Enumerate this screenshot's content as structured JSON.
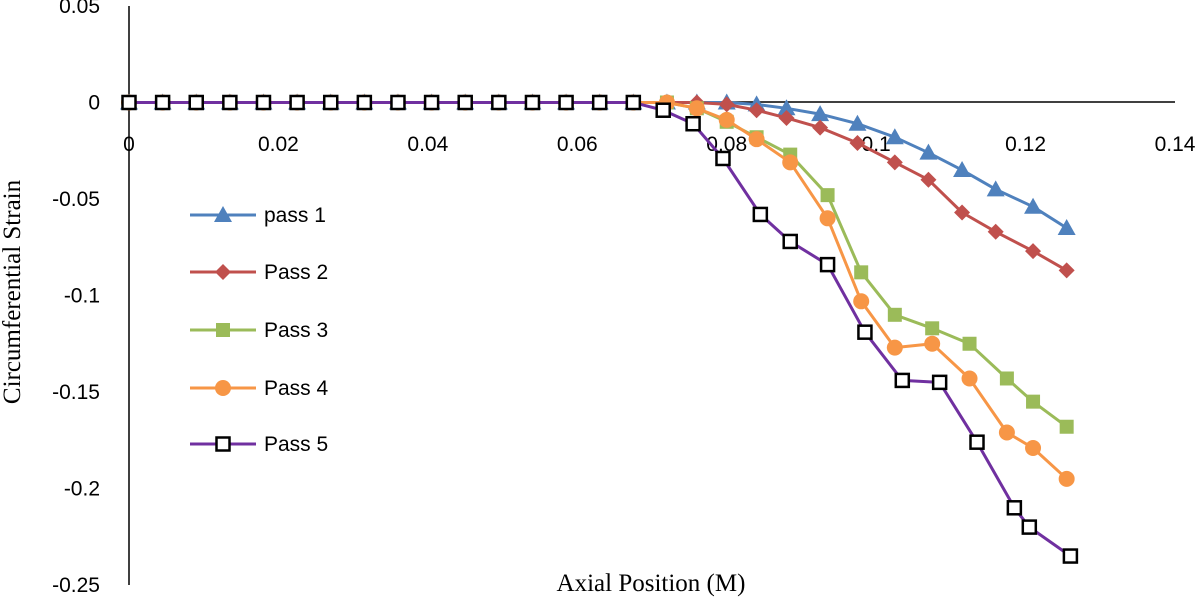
{
  "chart_data": {
    "type": "line",
    "title": "",
    "xlabel": "Axial Position (M)",
    "ylabel": "Circumferential Strain",
    "xlim": [
      0,
      0.14
    ],
    "ylim": [
      -0.25,
      0.05
    ],
    "x_ticks": [
      "0",
      "0.02",
      "0.04",
      "0.06",
      "0.08",
      "0.1",
      "0.12",
      "0.14"
    ],
    "y_ticks": [
      "0.05",
      "0",
      "-0.05",
      "-0.1",
      "-0.15",
      "-0.2",
      "-0.25"
    ],
    "grid": false,
    "legend_position": "left-center",
    "series": [
      {
        "name": "pass 1",
        "color": "#4f81bd",
        "marker": "triangle",
        "x": [
          0,
          0.0045,
          0.009,
          0.0135,
          0.018,
          0.0225,
          0.027,
          0.0315,
          0.036,
          0.0405,
          0.045,
          0.0495,
          0.054,
          0.0585,
          0.063,
          0.0675,
          0.072,
          0.076,
          0.08,
          0.084,
          0.088,
          0.0925,
          0.0975,
          0.1025,
          0.107,
          0.1115,
          0.116,
          0.121,
          0.1255
        ],
        "y": [
          0,
          0,
          0,
          0,
          0,
          0,
          0,
          0,
          0,
          0,
          0,
          0,
          0,
          0,
          0,
          0,
          0,
          0,
          0,
          -0.001,
          -0.003,
          -0.006,
          -0.011,
          -0.018,
          -0.026,
          -0.035,
          -0.045,
          -0.054,
          -0.065
        ]
      },
      {
        "name": "Pass 2",
        "color": "#c0504d",
        "marker": "diamond",
        "x": [
          0,
          0.0045,
          0.009,
          0.0135,
          0.018,
          0.0225,
          0.027,
          0.0315,
          0.036,
          0.0405,
          0.045,
          0.0495,
          0.054,
          0.0585,
          0.063,
          0.0675,
          0.072,
          0.076,
          0.08,
          0.084,
          0.088,
          0.0925,
          0.0975,
          0.1025,
          0.107,
          0.1115,
          0.116,
          0.121,
          0.1255
        ],
        "y": [
          0,
          0,
          0,
          0,
          0,
          0,
          0,
          0,
          0,
          0,
          0,
          0,
          0,
          0,
          0,
          0,
          0,
          0,
          -0.001,
          -0.004,
          -0.008,
          -0.013,
          -0.021,
          -0.031,
          -0.04,
          -0.057,
          -0.067,
          -0.077,
          -0.087
        ]
      },
      {
        "name": "Pass 3",
        "color": "#9bbb59",
        "marker": "square",
        "x": [
          0,
          0.0045,
          0.009,
          0.0135,
          0.018,
          0.0225,
          0.027,
          0.0315,
          0.036,
          0.0405,
          0.045,
          0.0495,
          0.054,
          0.0585,
          0.063,
          0.0675,
          0.072,
          0.076,
          0.08,
          0.084,
          0.0885,
          0.0935,
          0.098,
          0.1025,
          0.1075,
          0.1125,
          0.1175,
          0.121,
          0.1255
        ],
        "y": [
          0,
          0,
          0,
          0,
          0,
          0,
          0,
          0,
          0,
          0,
          0,
          0,
          0,
          0,
          0,
          0,
          0,
          -0.003,
          -0.01,
          -0.018,
          -0.027,
          -0.048,
          -0.088,
          -0.11,
          -0.117,
          -0.125,
          -0.143,
          -0.155,
          -0.168
        ]
      },
      {
        "name": "Pass 4",
        "color": "#f79646",
        "marker": "circle",
        "x": [
          0,
          0.0045,
          0.009,
          0.0135,
          0.018,
          0.0225,
          0.027,
          0.0315,
          0.036,
          0.0405,
          0.045,
          0.0495,
          0.054,
          0.0585,
          0.063,
          0.0675,
          0.072,
          0.076,
          0.08,
          0.084,
          0.0885,
          0.0935,
          0.098,
          0.1025,
          0.1075,
          0.1125,
          0.1175,
          0.121,
          0.1255
        ],
        "y": [
          0,
          0,
          0,
          0,
          0,
          0,
          0,
          0,
          0,
          0,
          0,
          0,
          0,
          0,
          0,
          0,
          0,
          -0.003,
          -0.009,
          -0.019,
          -0.031,
          -0.06,
          -0.103,
          -0.127,
          -0.125,
          -0.143,
          -0.171,
          -0.179,
          -0.195
        ]
      },
      {
        "name": "Pass 5",
        "color": "#7030a0",
        "marker": "open-square",
        "x": [
          0,
          0.0045,
          0.009,
          0.0135,
          0.018,
          0.0225,
          0.027,
          0.0315,
          0.036,
          0.0405,
          0.045,
          0.0495,
          0.054,
          0.0585,
          0.063,
          0.0675,
          0.0715,
          0.0755,
          0.0795,
          0.0845,
          0.0885,
          0.0935,
          0.0985,
          0.1035,
          0.1085,
          0.1135,
          0.1185,
          0.1205,
          0.126
        ],
        "y": [
          0,
          0,
          0,
          0,
          0,
          0,
          0,
          0,
          0,
          0,
          0,
          0,
          0,
          0,
          0,
          0,
          -0.004,
          -0.011,
          -0.029,
          -0.058,
          -0.072,
          -0.084,
          -0.119,
          -0.144,
          -0.145,
          -0.176,
          -0.21,
          -0.22,
          -0.235
        ]
      }
    ]
  }
}
